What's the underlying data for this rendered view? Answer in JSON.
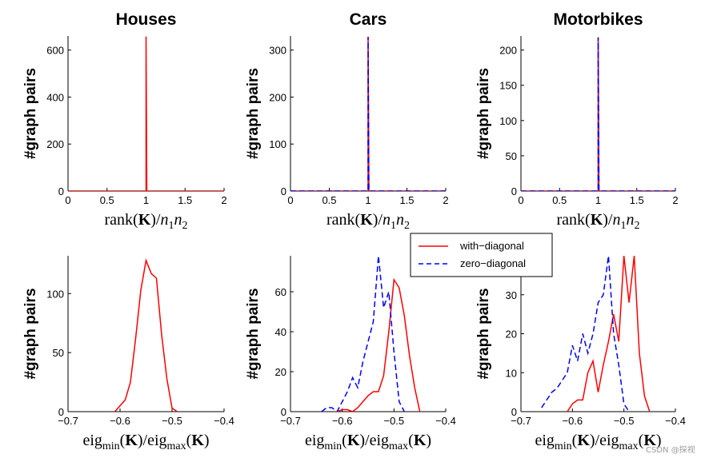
{
  "chart_data": [
    {
      "type": "line",
      "title": "Houses",
      "ylabel": "#graph pairs",
      "xlabel": "rank(K)/n1n2",
      "xlim": [
        0,
        2
      ],
      "ylim": [
        0,
        660
      ],
      "xticks": [
        0,
        0.5,
        1,
        1.5,
        2
      ],
      "xtick_labels": [
        "0",
        "0.5",
        "1",
        "1.5",
        "2"
      ],
      "yticks": [
        0,
        200,
        400,
        600
      ],
      "ytick_labels": [
        "0",
        "200",
        "400",
        "600"
      ],
      "series": [
        {
          "color": "#ff0000",
          "dash": "solid",
          "x": [
            0,
            0.99,
            1,
            1,
            1.01,
            2
          ],
          "y": [
            0,
            0,
            0,
            658,
            0,
            0
          ]
        }
      ]
    },
    {
      "type": "line",
      "title": "Cars",
      "ylabel": "#graph pairs",
      "xlabel": "rank(K)/n1n2",
      "xlim": [
        0,
        2
      ],
      "ylim": [
        0,
        330
      ],
      "xticks": [
        0,
        0.5,
        1,
        1.5,
        2
      ],
      "xtick_labels": [
        "0",
        "0.5",
        "1",
        "1.5",
        "2"
      ],
      "yticks": [
        0,
        100,
        200,
        300
      ],
      "ytick_labels": [
        "0",
        "100",
        "200",
        "300"
      ],
      "series": [
        {
          "color": "#ff0000",
          "dash": "solid",
          "x": [
            0,
            0.99,
            1,
            1,
            1.01,
            2
          ],
          "y": [
            0,
            0,
            0,
            328,
            0,
            0
          ]
        },
        {
          "color": "#0000ff",
          "dash": "dashed",
          "x": [
            0,
            0.99,
            1,
            1,
            1.01,
            2
          ],
          "y": [
            0,
            0,
            0,
            328,
            0,
            0
          ]
        }
      ]
    },
    {
      "type": "line",
      "title": "Motorbikes",
      "ylabel": "#graph pairs",
      "xlabel": "rank(K)/n1n2",
      "xlim": [
        0,
        2
      ],
      "ylim": [
        0,
        220
      ],
      "xticks": [
        0,
        0.5,
        1,
        1.5,
        2
      ],
      "xtick_labels": [
        "0",
        "0.5",
        "1",
        "1.5",
        "2"
      ],
      "yticks": [
        0,
        50,
        100,
        150,
        200
      ],
      "ytick_labels": [
        "0",
        "50",
        "100",
        "150",
        "200"
      ],
      "series": [
        {
          "color": "#ff0000",
          "dash": "solid",
          "x": [
            0,
            0.99,
            1,
            1,
            1.01,
            2
          ],
          "y": [
            0,
            0,
            0,
            218,
            0,
            0
          ]
        },
        {
          "color": "#0000ff",
          "dash": "dashed",
          "x": [
            0,
            0.99,
            1,
            1,
            1.01,
            2
          ],
          "y": [
            0,
            0,
            0,
            218,
            0,
            0
          ]
        }
      ]
    },
    {
      "type": "line",
      "title": "",
      "ylabel": "#graph pairs",
      "xlabel": "eigmin(K)/eigmax(K)",
      "xlim": [
        -0.7,
        -0.4
      ],
      "ylim": [
        0,
        132
      ],
      "xticks": [
        -0.7,
        -0.6,
        -0.5,
        -0.4
      ],
      "xtick_labels": [
        "−0.7",
        "−0.6",
        "−0.5",
        "−0.4"
      ],
      "yticks": [
        0,
        50,
        100
      ],
      "ytick_labels": [
        "0",
        "50",
        "100"
      ],
      "series": [
        {
          "color": "#ff0000",
          "dash": "solid",
          "x": [
            -0.61,
            -0.6,
            -0.59,
            -0.58,
            -0.57,
            -0.56,
            -0.55,
            -0.54,
            -0.53,
            -0.52,
            -0.51,
            -0.5,
            -0.49
          ],
          "y": [
            0,
            5,
            10,
            25,
            62,
            103,
            128,
            117,
            113,
            65,
            28,
            3,
            0
          ]
        }
      ]
    },
    {
      "type": "line",
      "title": "",
      "ylabel": "#graph pairs",
      "xlabel": "eigmin(K)/eigmax(K)",
      "xlim": [
        -0.7,
        -0.4
      ],
      "ylim": [
        0,
        78
      ],
      "xticks": [
        -0.7,
        -0.6,
        -0.5,
        -0.4
      ],
      "xtick_labels": [
        "−0.7",
        "−0.6",
        "−0.5",
        "−0.4"
      ],
      "yticks": [
        0,
        20,
        40,
        60
      ],
      "ytick_labels": [
        "0",
        "20",
        "40",
        "60"
      ],
      "series": [
        {
          "color": "#ff0000",
          "dash": "solid",
          "x": [
            -0.61,
            -0.6,
            -0.59,
            -0.58,
            -0.57,
            -0.56,
            -0.55,
            -0.54,
            -0.53,
            -0.52,
            -0.51,
            -0.5,
            -0.49,
            -0.48,
            -0.47,
            -0.46,
            -0.45
          ],
          "y": [
            0,
            1,
            1,
            0,
            2,
            5,
            8,
            10,
            10,
            18,
            40,
            66,
            62,
            48,
            28,
            12,
            0
          ]
        },
        {
          "color": "#0000ff",
          "dash": "dashed",
          "x": [
            -0.64,
            -0.63,
            -0.62,
            -0.61,
            -0.6,
            -0.59,
            -0.58,
            -0.57,
            -0.56,
            -0.55,
            -0.54,
            -0.53,
            -0.52,
            -0.51,
            -0.5,
            -0.49,
            -0.48
          ],
          "y": [
            0,
            2,
            2,
            0,
            5,
            10,
            17,
            12,
            25,
            35,
            45,
            78,
            52,
            60,
            30,
            5,
            0
          ]
        }
      ]
    },
    {
      "type": "line",
      "title": "",
      "ylabel": "#graph pairs",
      "xlabel": "eigmin(K)/eigmax(K)",
      "xlim": [
        -0.7,
        -0.4
      ],
      "ylim": [
        0,
        40
      ],
      "xticks": [
        -0.7,
        -0.6,
        -0.5,
        -0.4
      ],
      "xtick_labels": [
        "−0.7",
        "−0.6",
        "−0.5",
        "−0.4"
      ],
      "yticks": [
        0,
        10,
        20,
        30
      ],
      "ytick_labels": [
        "0",
        "10",
        "20",
        "30"
      ],
      "series": [
        {
          "color": "#ff0000",
          "dash": "solid",
          "x": [
            -0.61,
            -0.6,
            -0.59,
            -0.58,
            -0.57,
            -0.56,
            -0.55,
            -0.54,
            -0.53,
            -0.52,
            -0.51,
            -0.5,
            -0.49,
            -0.48,
            -0.47,
            -0.46,
            -0.45
          ],
          "y": [
            0,
            2,
            3,
            3,
            10,
            13,
            5,
            12,
            18,
            25,
            18,
            40,
            28,
            40,
            15,
            4,
            0
          ]
        },
        {
          "color": "#0000ff",
          "dash": "dashed",
          "x": [
            -0.66,
            -0.65,
            -0.64,
            -0.63,
            -0.62,
            -0.61,
            -0.6,
            -0.59,
            -0.58,
            -0.57,
            -0.56,
            -0.55,
            -0.54,
            -0.53,
            -0.52,
            -0.51,
            -0.5,
            -0.49
          ],
          "y": [
            1,
            3,
            5,
            6,
            8,
            10,
            17,
            13,
            20,
            15,
            20,
            28,
            30,
            40,
            20,
            12,
            2,
            0
          ]
        }
      ]
    }
  ],
  "legend": {
    "entries": [
      {
        "label": "with−diagonal",
        "color": "#ff0000",
        "dash": "solid"
      },
      {
        "label": "zero−diagonal",
        "color": "#0000ff",
        "dash": "dashed"
      }
    ]
  },
  "watermark": "CSDN @探视"
}
